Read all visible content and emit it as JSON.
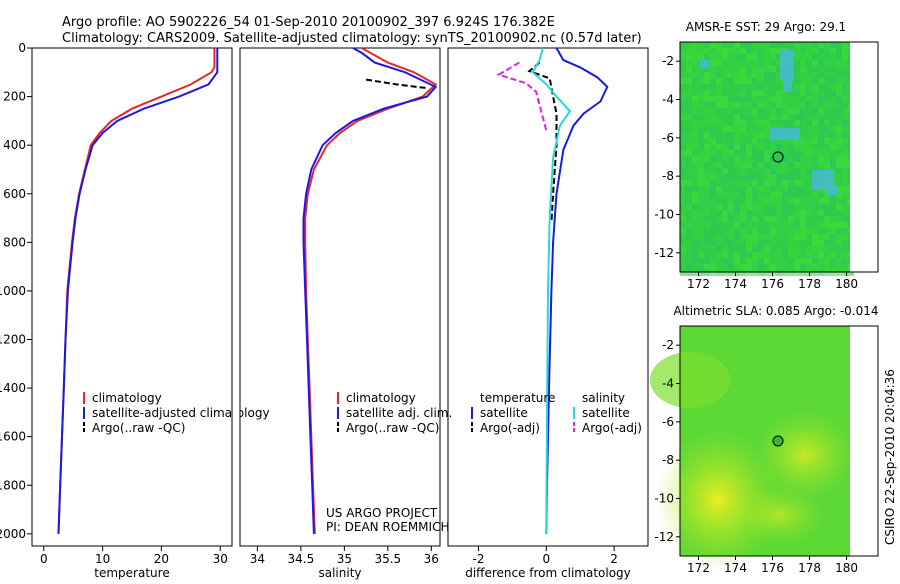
{
  "header": {
    "line1": "Argo profile: AO 5902226_54 01-Sep-2010 20100902_397 6.924S 176.382E",
    "line2": "Climatology: CARS2009. Satellite-adjusted climatology: synTS_20100902.nc (0.57d later)"
  },
  "side_label": "CSIRO 22-Sep-2010 20:04:36",
  "credits": {
    "line1": "US ARGO PROJECT",
    "line2": "PI: DEAN ROEMMICH"
  },
  "colors": {
    "red": "#e8262a",
    "blue": "#1a1ae0",
    "black": "#000000",
    "cyan": "#29d8d8",
    "magenta": "#e020e0"
  },
  "chart_data": [
    {
      "type": "line",
      "id": "temperature",
      "xlabel": "temperature",
      "xlim": [
        -2,
        32
      ],
      "ylim": [
        0,
        2050
      ],
      "y_reversed": true,
      "xticks": [
        0,
        10,
        20,
        30
      ],
      "yticks": [
        0,
        200,
        400,
        600,
        800,
        1000,
        1200,
        1400,
        1600,
        1800,
        2000
      ],
      "legend": [
        "climatology",
        "satellite-adjusted climatology",
        "Argo(..raw -QC)"
      ],
      "series": [
        {
          "name": "climatology",
          "color": "red",
          "dash": false,
          "points": [
            [
              29.0,
              0
            ],
            [
              29.0,
              80
            ],
            [
              28.5,
              100
            ],
            [
              25,
              150
            ],
            [
              20,
              200
            ],
            [
              15,
              250
            ],
            [
              11.5,
              300
            ],
            [
              9.5,
              350
            ],
            [
              8.0,
              400
            ],
            [
              7.0,
              500
            ],
            [
              6.0,
              600
            ],
            [
              5.3,
              700
            ],
            [
              4.8,
              800
            ],
            [
              4.4,
              900
            ],
            [
              4.0,
              1000
            ],
            [
              3.7,
              1200
            ],
            [
              3.4,
              1400
            ],
            [
              3.1,
              1600
            ],
            [
              2.8,
              1800
            ],
            [
              2.5,
              2000
            ]
          ]
        },
        {
          "name": "satellite-adjusted climatology",
          "color": "blue",
          "dash": false,
          "points": [
            [
              29.5,
              0
            ],
            [
              29.5,
              100
            ],
            [
              28.0,
              150
            ],
            [
              23,
              200
            ],
            [
              17,
              250
            ],
            [
              12.5,
              300
            ],
            [
              10.0,
              350
            ],
            [
              8.3,
              400
            ],
            [
              7.1,
              500
            ],
            [
              6.1,
              600
            ],
            [
              5.4,
              700
            ],
            [
              4.9,
              800
            ],
            [
              4.5,
              900
            ],
            [
              4.1,
              1000
            ],
            [
              3.7,
              1200
            ],
            [
              3.4,
              1400
            ],
            [
              3.1,
              1600
            ],
            [
              2.8,
              1800
            ],
            [
              2.5,
              2000
            ]
          ]
        },
        {
          "name": "Argo(..raw -QC)",
          "color": "black",
          "dash": true,
          "points": []
        }
      ]
    },
    {
      "type": "line",
      "id": "salinity",
      "xlabel": "salinity",
      "xlim": [
        33.8,
        36.1
      ],
      "ylim": [
        0,
        2050
      ],
      "y_reversed": true,
      "xticks": [
        34,
        34.5,
        35,
        35.5,
        36
      ],
      "legend": [
        "climatology",
        "satellite adj. clim.",
        "Argo(..raw -QC)"
      ],
      "series": [
        {
          "name": "climatology",
          "color": "red",
          "dash": false,
          "points": [
            [
              35.2,
              0
            ],
            [
              35.3,
              20
            ],
            [
              35.5,
              60
            ],
            [
              35.8,
              100
            ],
            [
              36.05,
              150
            ],
            [
              35.9,
              200
            ],
            [
              35.5,
              250
            ],
            [
              35.15,
              300
            ],
            [
              34.95,
              350
            ],
            [
              34.8,
              400
            ],
            [
              34.65,
              500
            ],
            [
              34.58,
              600
            ],
            [
              34.55,
              700
            ],
            [
              34.55,
              800
            ],
            [
              34.56,
              1000
            ],
            [
              34.58,
              1200
            ],
            [
              34.6,
              1400
            ],
            [
              34.62,
              1600
            ],
            [
              34.64,
              1800
            ],
            [
              34.66,
              2000
            ]
          ]
        },
        {
          "name": "satellite adj. clim.",
          "color": "blue",
          "dash": false,
          "points": [
            [
              35.1,
              0
            ],
            [
              35.2,
              20
            ],
            [
              35.35,
              60
            ],
            [
              35.7,
              100
            ],
            [
              36.05,
              160
            ],
            [
              35.95,
              200
            ],
            [
              35.45,
              250
            ],
            [
              35.1,
              300
            ],
            [
              34.9,
              350
            ],
            [
              34.75,
              400
            ],
            [
              34.62,
              500
            ],
            [
              34.56,
              600
            ],
            [
              34.53,
              700
            ],
            [
              34.53,
              800
            ],
            [
              34.55,
              1000
            ],
            [
              34.57,
              1200
            ],
            [
              34.59,
              1400
            ],
            [
              34.61,
              1600
            ],
            [
              34.63,
              1800
            ],
            [
              34.65,
              2000
            ]
          ]
        },
        {
          "name": "Argo(..raw -QC)",
          "color": "black",
          "dash": true,
          "points": [
            [
              35.25,
              130
            ],
            [
              35.6,
              150
            ],
            [
              35.95,
              165
            ]
          ]
        }
      ]
    },
    {
      "type": "line",
      "id": "difference",
      "xlabel": "difference from climatology",
      "xlim": [
        -2.9,
        3.0
      ],
      "ylim": [
        0,
        2050
      ],
      "y_reversed": true,
      "xticks": [
        -2,
        0,
        2
      ],
      "legend_left_title": "temperature",
      "legend_right_title": "salinity",
      "legend": [
        "satellite",
        "Argo(-adj)",
        "satellite",
        "Argo(-adj)"
      ],
      "series": [
        {
          "name": "temperature satellite",
          "color": "blue",
          "dash": false,
          "points": [
            [
              0.3,
              0
            ],
            [
              0.5,
              50
            ],
            [
              1.0,
              80
            ],
            [
              1.5,
              120
            ],
            [
              1.8,
              160
            ],
            [
              1.6,
              220
            ],
            [
              1.1,
              270
            ],
            [
              0.8,
              320
            ],
            [
              0.5,
              420
            ],
            [
              0.3,
              600
            ],
            [
              0.2,
              800
            ],
            [
              0.15,
              1000
            ],
            [
              0.08,
              1400
            ],
            [
              0.02,
              1800
            ],
            [
              0,
              2000
            ]
          ]
        },
        {
          "name": "temperature Argo(-adj)",
          "color": "black",
          "dash": true,
          "points": [
            [
              -0.2,
              60
            ],
            [
              -0.5,
              95
            ],
            [
              0.1,
              125
            ],
            [
              0.2,
              200
            ],
            [
              0.3,
              270
            ],
            [
              0.3,
              400
            ],
            [
              0.2,
              600
            ],
            [
              0.15,
              720
            ]
          ]
        },
        {
          "name": "salinity satellite",
          "color": "cyan",
          "dash": false,
          "points": [
            [
              -0.1,
              0
            ],
            [
              -0.2,
              50
            ],
            [
              -0.4,
              100
            ],
            [
              0,
              150
            ],
            [
              0.3,
              200
            ],
            [
              0.7,
              260
            ],
            [
              0.4,
              320
            ],
            [
              0.2,
              450
            ],
            [
              0.1,
              700
            ],
            [
              0.05,
              1000
            ],
            [
              0.02,
              1500
            ],
            [
              0,
              2000
            ]
          ]
        },
        {
          "name": "salinity Argo(-adj)",
          "color": "magenta",
          "dash": true,
          "points": [
            [
              -0.8,
              60
            ],
            [
              -1.4,
              110
            ],
            [
              -0.6,
              145
            ],
            [
              -0.3,
              180
            ],
            [
              -0.15,
              260
            ],
            [
              0,
              340
            ]
          ]
        }
      ]
    }
  ],
  "maps": [
    {
      "title": "AMSR-E SST: 29 Argo: 29.1",
      "type": "heatmap",
      "xticks": [
        172,
        174,
        176,
        178,
        180
      ],
      "yticks": [
        -2,
        -4,
        -6,
        -8,
        -10,
        -12
      ],
      "xlim": [
        171,
        181.7
      ],
      "ylim": [
        -1,
        -13
      ],
      "land_from": 180.1,
      "argo_point": [
        176.4,
        -6.9
      ]
    },
    {
      "title": "Altimetric SLA: 0.085 Argo: -0.014",
      "type": "heatmap",
      "xticks": [
        172,
        174,
        176,
        178,
        180
      ],
      "yticks": [
        -2,
        -4,
        -6,
        -8,
        -10,
        -12
      ],
      "xlim": [
        171,
        181.7
      ],
      "ylim": [
        -1,
        -13
      ],
      "land_from": 180.1,
      "argo_point": [
        176.4,
        -6.9
      ]
    }
  ]
}
